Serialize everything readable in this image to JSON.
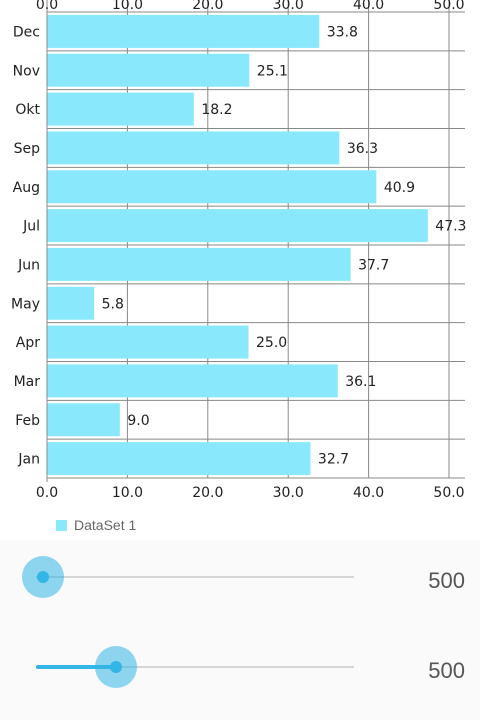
{
  "chart_data": {
    "type": "bar",
    "orientation": "horizontal",
    "categories": [
      "Dec",
      "Nov",
      "Okt",
      "Sep",
      "Aug",
      "Jul",
      "Jun",
      "May",
      "Apr",
      "Mar",
      "Feb",
      "Jan"
    ],
    "values": [
      33.8,
      25.1,
      18.2,
      36.3,
      40.9,
      47.3,
      37.7,
      5.8,
      25.0,
      36.1,
      9.0,
      32.7
    ],
    "value_labels": [
      "33.8",
      "25.1",
      "18.2",
      "36.3",
      "40.9",
      "47.3",
      "37.7",
      "5.8",
      "25.0",
      "36.1",
      "9.0",
      "32.7"
    ],
    "xlim": [
      0,
      50
    ],
    "x_ticks": [
      "0.0",
      "10.0",
      "20.0",
      "30.0",
      "40.0",
      "50.0"
    ],
    "grid": true,
    "axis_labels_top_and_bottom": true,
    "legend": {
      "position": "bottom-left",
      "label": "DataSet 1"
    },
    "bar_color": "#89e8fc"
  },
  "controls": {
    "seekbar_x": {
      "value_text": "500",
      "fraction": 0.0
    },
    "seekbar_y": {
      "value_text": "500",
      "fraction": 0.25
    }
  },
  "colors": {
    "accent": "#33b5e5",
    "grid": "#888888",
    "axis": "#8a8a8a"
  }
}
